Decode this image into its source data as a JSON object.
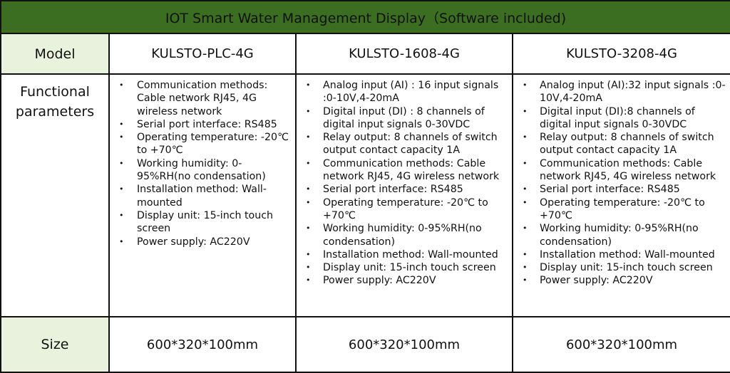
{
  "title": "IOT Smart Water Management Display（Software included)",
  "rows": {
    "model_label": "Model",
    "functional_label_line1": "Functional",
    "functional_label_line2": "parameters",
    "size_label": "Size"
  },
  "models": [
    {
      "name": "KULSTO-PLC-4G",
      "params": [
        " Communication methods: Cable network RJ45, 4G wireless network",
        "Serial port interface: RS485",
        "Operating temperature: -20℃ to +70℃",
        "Working humidity: 0-95%RH(no condensation)",
        "Installation method: Wall-mounted",
        "Display unit: 15-inch touch screen",
        "Power supply: AC220V"
      ],
      "size": "600*320*100mm"
    },
    {
      "name": "KULSTO-1608-4G",
      "params": [
        "Analog input (AI) : 16 input signals :0-10V,4-20mA",
        "Digital input (DI) : 8 channels of digital input signals 0-30VDC",
        "Relay output: 8 channels of switch output contact capacity 1A",
        "Communication methods: Cable network RJ45, 4G wireless network",
        "Serial port interface: RS485",
        "Operating temperature: -20℃ to +70℃",
        "Working humidity: 0-95%RH(no condensation)",
        "Installation method: Wall-mounted",
        "Display unit: 15-inch touch screen",
        "Power supply: AC220V"
      ],
      "size": "600*320*100mm"
    },
    {
      "name": "KULSTO-3208-4G",
      "params": [
        "Analog input (AI):32 input signals :0-10V,4-20mA",
        "Digital input (DI):8 channels of digital input signals 0-30VDC",
        "Relay output: 8 channels of switch output contact capacity 1A",
        "Communication methods: Cable network RJ45, 4G wireless network",
        "Serial port interface: RS485",
        "Operating temperature: -20℃ to +70℃",
        "Working humidity: 0-95%RH(no condensation)",
        "Installation method: Wall-mounted",
        "Display unit: 15-inch touch screen",
        "Power supply: AC220V"
      ],
      "size": "600*320*100mm"
    }
  ],
  "colors": {
    "title_bg": "#3c6e22",
    "label_bg": "#e8f2dc",
    "border": "#111111"
  }
}
